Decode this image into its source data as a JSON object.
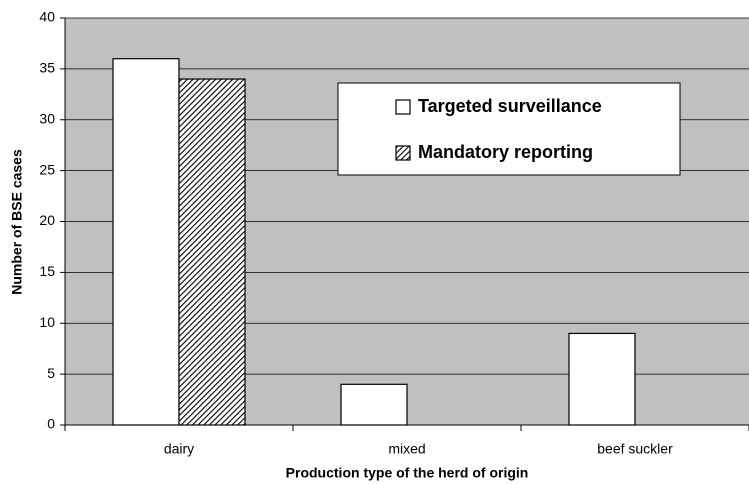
{
  "chart_data": {
    "type": "bar",
    "x_label": "Production type of the herd of origin",
    "y_label": "Number of BSE cases",
    "categories": [
      "dairy",
      "mixed",
      "beef suckler"
    ],
    "series": [
      {
        "name": "Targeted surveillance",
        "color": "#ffffff",
        "values": [
          36,
          4,
          9
        ]
      },
      {
        "name": "Mandatory reporting",
        "color": "#000000",
        "values": [
          34,
          0,
          0
        ]
      }
    ],
    "ylim": [
      0,
      40
    ],
    "yticks": [
      0,
      5,
      10,
      15,
      20,
      25,
      30,
      35,
      40
    ],
    "grid": true,
    "background": "#c0c0c0",
    "legend": "upper right"
  }
}
